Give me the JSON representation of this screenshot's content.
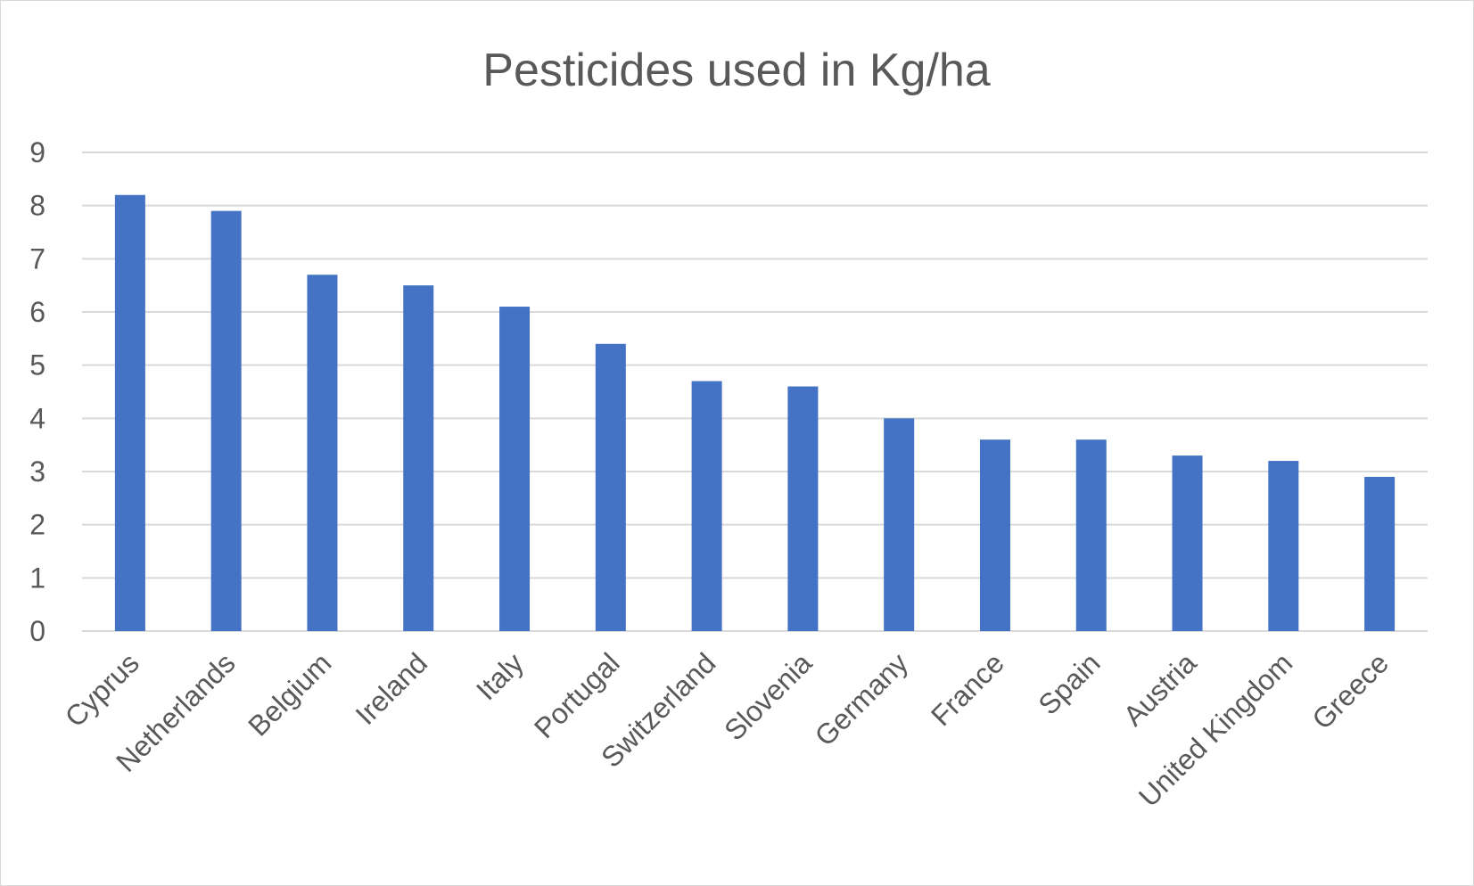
{
  "chart_data": {
    "type": "bar",
    "title": "Pesticides used in Kg/ha",
    "xlabel": "",
    "ylabel": "",
    "categories": [
      "Cyprus",
      "Netherlands",
      "Belgium",
      "Ireland",
      "Italy",
      "Portugal",
      "Switzerland",
      "Slovenia",
      "Germany",
      "France",
      "Spain",
      "Austria",
      "United Kingdom",
      "Greece"
    ],
    "values": [
      8.2,
      7.9,
      6.7,
      6.5,
      6.1,
      5.4,
      4.7,
      4.6,
      4.0,
      3.6,
      3.6,
      3.3,
      3.2,
      2.9
    ],
    "ylim": [
      0,
      9
    ],
    "yticks": [
      0,
      1,
      2,
      3,
      4,
      5,
      6,
      7,
      8,
      9
    ],
    "grid": true,
    "legend": "none",
    "bar_color": "#4472C4",
    "grid_color": "#d9d9d9",
    "text_color": "#595959"
  }
}
